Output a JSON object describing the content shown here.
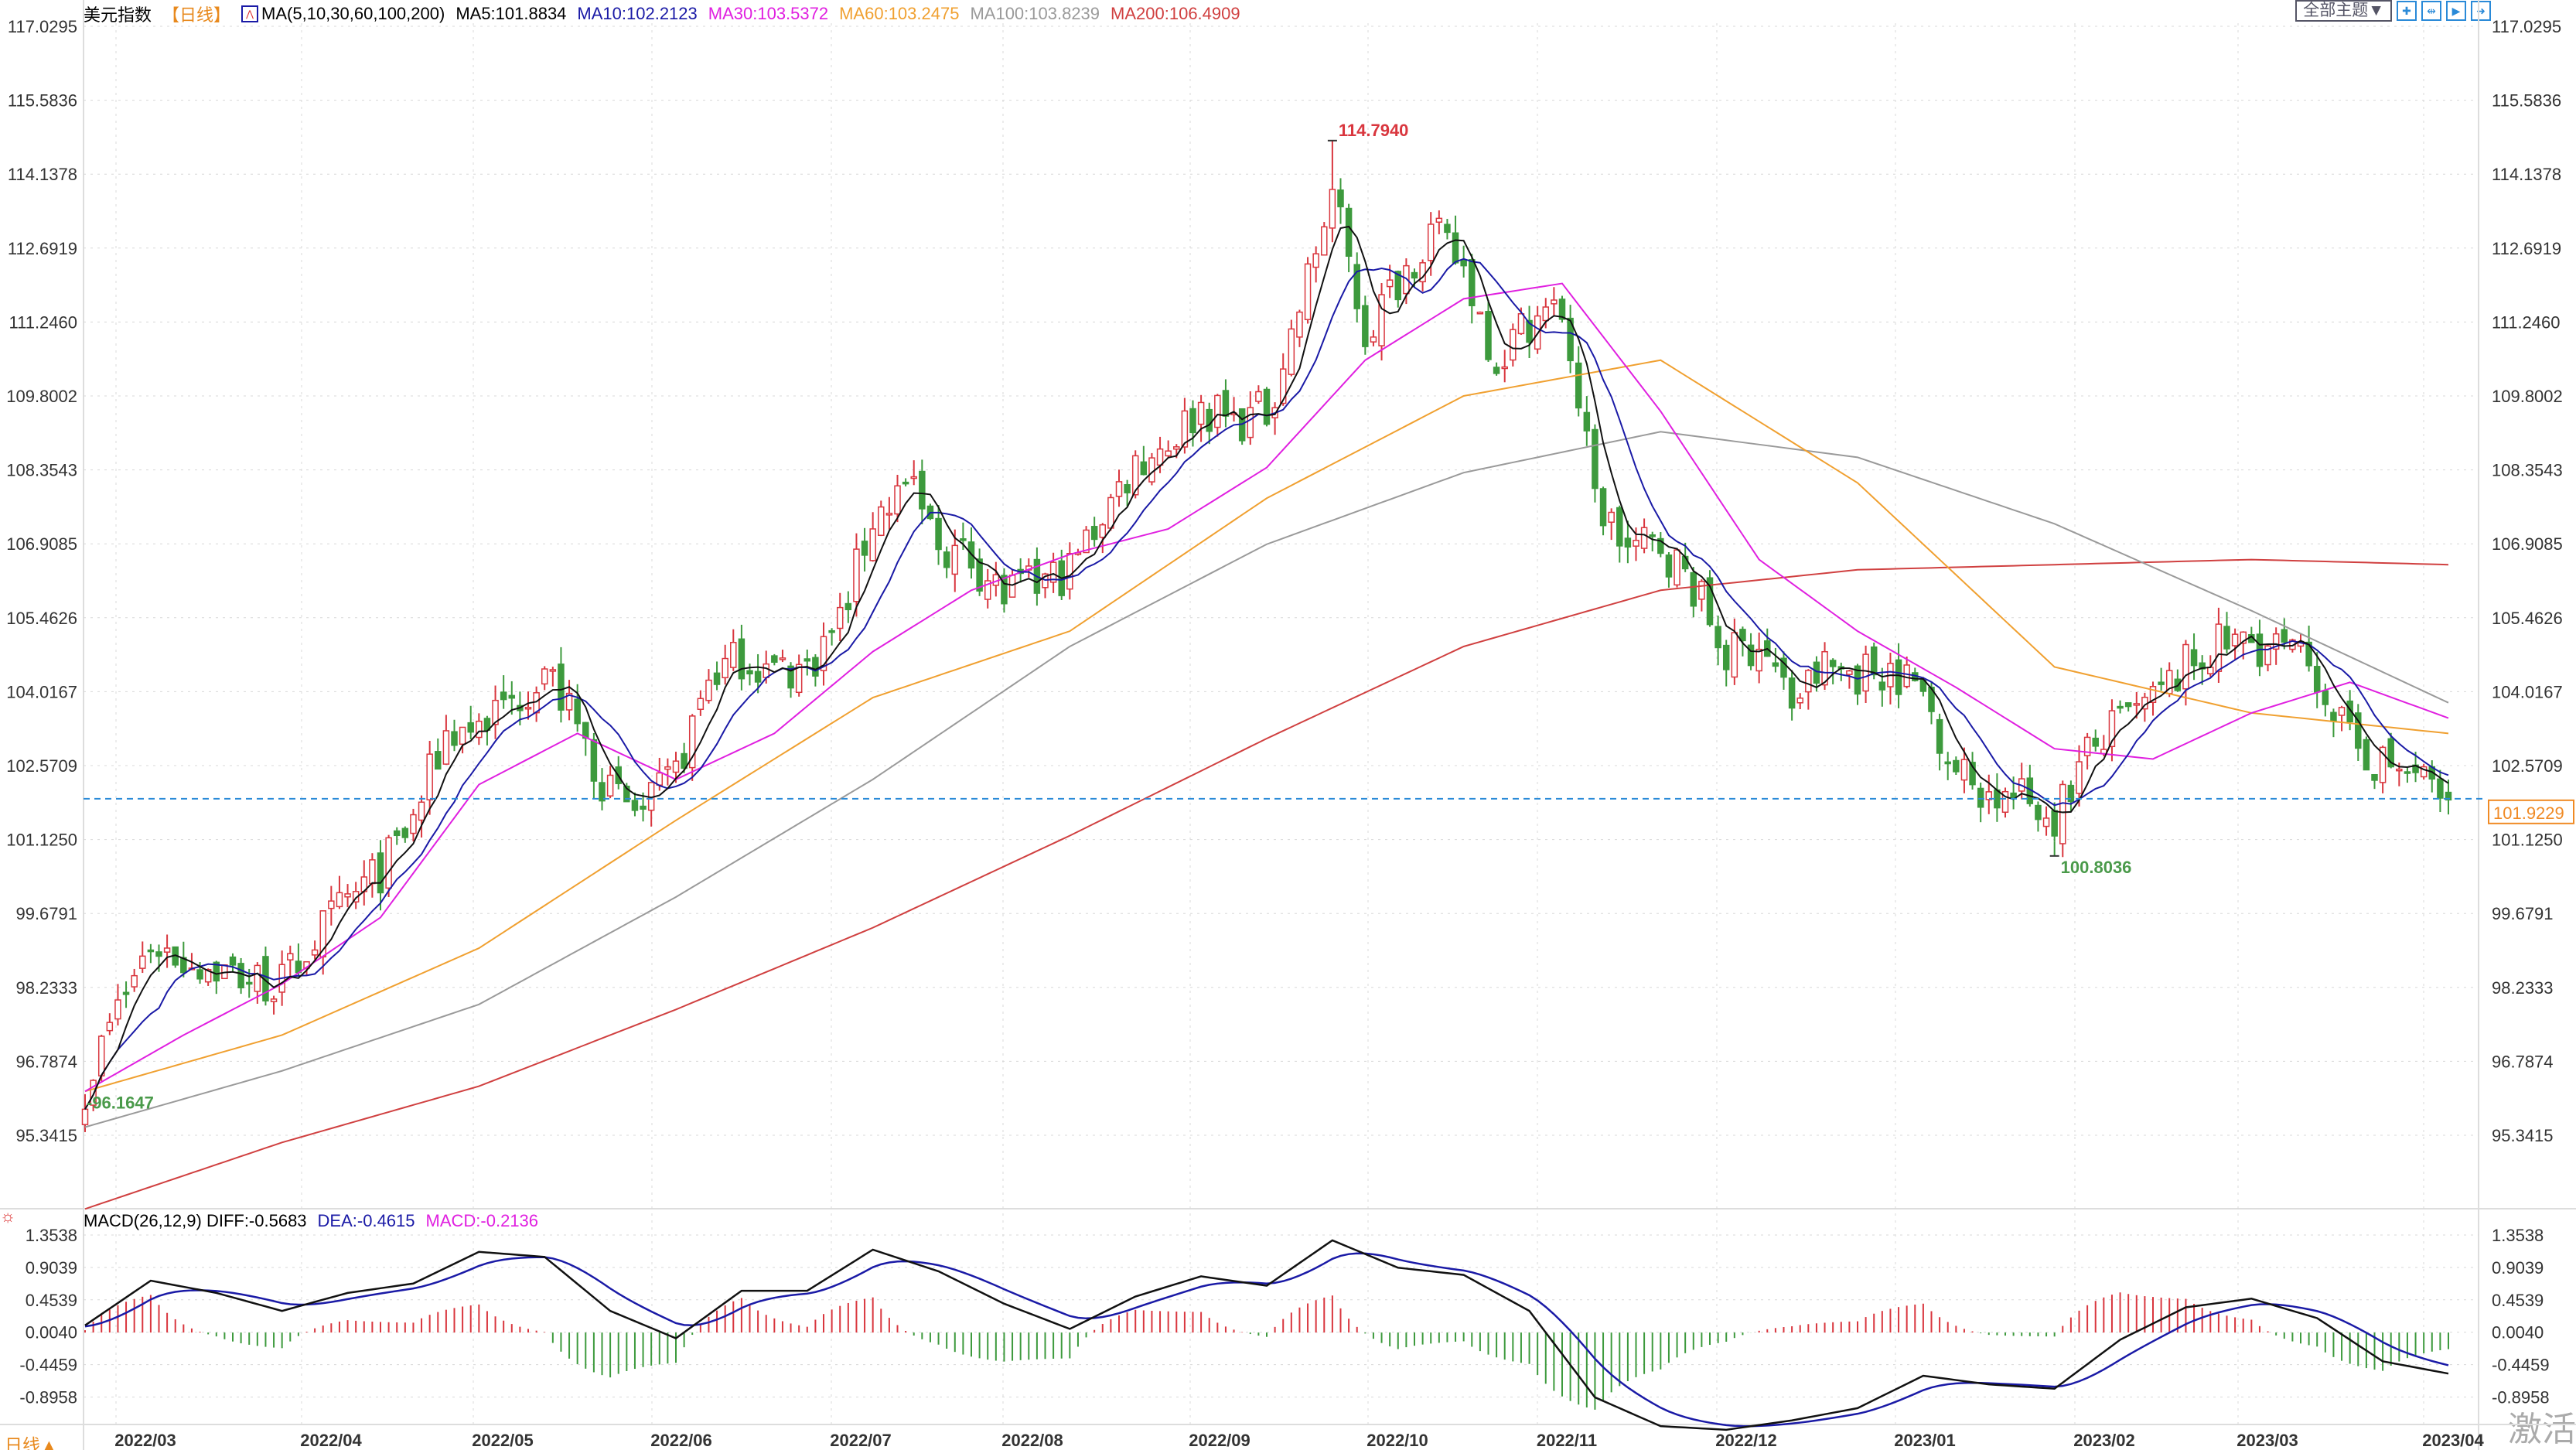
{
  "header": {
    "title": "美元指数",
    "period": "【日线】",
    "ma_label": "MA(5,10,30,60,100,200)",
    "ma5": "MA5:101.8834",
    "ma10": "MA10:102.2123",
    "ma30": "MA30:103.5372",
    "ma60": "MA60:103.2475",
    "ma100": "MA100:103.8239",
    "ma200": "MA200:106.4909"
  },
  "toolbar": {
    "theme": "全部主题▼",
    "icons": [
      "crosshair-icon",
      "range-icon",
      "play-icon",
      "exit-icon"
    ]
  },
  "macd_header": {
    "label": "MACD(26,12,9) DIFF:-0.5683",
    "dea": "DEA:-0.4615",
    "macd": "MACD:-0.2136"
  },
  "period_button": "日线▲",
  "watermark": "激活",
  "colors": {
    "up": "#d9363e",
    "down": "#3d9a3d",
    "ma5": "#111111",
    "ma10": "#1a1aa6",
    "ma30": "#e020e0",
    "ma60": "#f0a030",
    "ma100": "#9a9a9a",
    "ma200": "#d04040",
    "diff": "#111111",
    "dea": "#1a1aa6",
    "last_price": "#f08a24"
  },
  "chart_data": {
    "type": "candlestick",
    "price_ticks": [
      "117.0295",
      "115.5836",
      "114.1378",
      "112.6919",
      "111.2460",
      "109.8002",
      "108.3543",
      "106.9085",
      "105.4626",
      "104.0167",
      "102.5709",
      "101.1250",
      "99.6791",
      "98.2333",
      "96.7874",
      "95.3415"
    ],
    "macd_ticks": [
      "1.3538",
      "0.9039",
      "0.4539",
      "0.0040",
      "-0.4459",
      "-0.8958"
    ],
    "months": [
      "2022/03",
      "2022/04",
      "2022/05",
      "2022/06",
      "2022/07",
      "2022/08",
      "2022/09",
      "2022/10",
      "2022/11",
      "2022/12",
      "2023/01",
      "2023/02",
      "2023/03",
      "2023/04"
    ],
    "closes": [
      96.3,
      97.8,
      99.1,
      98.8,
      98.6,
      98.4,
      98.3,
      99.2,
      99.9,
      100.5,
      101.5,
      103.2,
      103.4,
      103.8,
      104.5,
      103.3,
      102.0,
      101.6,
      102.4,
      104.3,
      104.7,
      104.4,
      104.5,
      105.4,
      107.4,
      108.1,
      106.9,
      106.6,
      105.9,
      106.1,
      106.4,
      107.5,
      108.5,
      108.9,
      109.6,
      109.3,
      109.5,
      111.5,
      113.8,
      111.0,
      112.1,
      113.0,
      112.3,
      110.5,
      111.3,
      111.5,
      107.8,
      106.8,
      106.9,
      106.1,
      104.7,
      105.0,
      103.8,
      104.5,
      104.4,
      104.5,
      104.0,
      102.5,
      102.0,
      101.9,
      101.6,
      102.8,
      103.4,
      103.8,
      104.5,
      104.9,
      105.0,
      104.8,
      104.4,
      103.0,
      102.6,
      102.4,
      101.9
    ],
    "ma30": [
      96.2,
      97.3,
      98.3,
      99.6,
      102.2,
      103.2,
      102.3,
      103.2,
      104.8,
      106.0,
      106.7,
      107.2,
      108.4,
      110.5,
      111.7,
      112.0,
      109.5,
      106.6,
      105.2,
      104.1,
      102.9,
      102.7,
      103.6,
      104.2,
      103.5
    ],
    "ma60": [
      96.2,
      97.3,
      99.0,
      101.5,
      103.9,
      105.2,
      107.8,
      109.8,
      110.5,
      108.1,
      104.5,
      103.6,
      103.2
    ],
    "ma100": [
      95.5,
      96.6,
      97.9,
      100.0,
      102.3,
      104.9,
      106.9,
      108.3,
      109.1,
      108.6,
      107.3,
      105.6,
      103.8
    ],
    "ma200": [
      93.9,
      95.2,
      96.3,
      97.8,
      99.4,
      101.2,
      103.1,
      104.9,
      106.0,
      106.4,
      106.5,
      106.6,
      106.5
    ],
    "diff": [
      0.1,
      0.72,
      0.55,
      0.3,
      0.55,
      0.68,
      1.12,
      1.05,
      0.3,
      -0.08,
      0.58,
      0.58,
      1.15,
      0.85,
      0.4,
      0.05,
      0.5,
      0.78,
      0.65,
      1.28,
      0.9,
      0.8,
      0.3,
      -0.9,
      -1.3,
      -1.35,
      -1.22,
      -1.05,
      -0.6,
      -0.72,
      -0.78,
      -0.1,
      0.35,
      0.47,
      0.2,
      -0.4,
      -0.57
    ],
    "high_label": "114.7940",
    "low_label": "100.8036",
    "start_label": "96.1647",
    "last_price": "101.9229",
    "price_range": [
      93.8,
      117.0295
    ],
    "macd_range": [
      -1.4,
      1.45
    ]
  }
}
